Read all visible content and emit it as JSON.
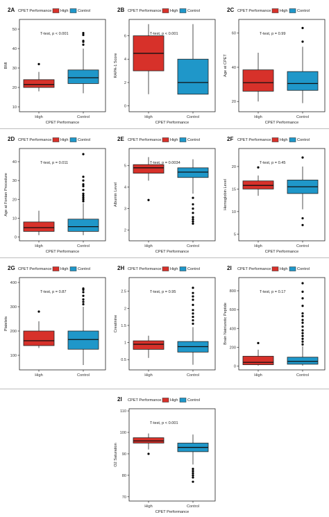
{
  "legend": {
    "title": "CPET Performance",
    "high_label": "High",
    "control_label": "Control",
    "high_color": "#d7312a",
    "control_color": "#1f97c9"
  },
  "groups": [
    "High",
    "Control"
  ],
  "chart_data": [
    {
      "type": "box",
      "panel": "2A",
      "ylabel": "BMI",
      "xlabel": "CPET Performance",
      "annotation": "T-test, p < 0.001",
      "ylim": [
        7.5,
        55
      ],
      "yticks": [
        10,
        20,
        30,
        40,
        50
      ],
      "boxes": [
        {
          "group": "High",
          "whisker_low": 18,
          "q1": 20,
          "median": 21.5,
          "q3": 24,
          "whisker_high": 28,
          "outliers": [
            32
          ]
        },
        {
          "group": "Control",
          "whisker_low": 17,
          "q1": 22,
          "median": 25,
          "q3": 29,
          "whisker_high": 40,
          "outliers": [
            42,
            43.5,
            44,
            47,
            48
          ]
        }
      ]
    },
    {
      "type": "box",
      "panel": "2B",
      "ylabel": "RAPA-1 Score",
      "xlabel": "CPET Performance",
      "annotation": "T-test, p < 0.001",
      "ylim": [
        -0.5,
        7.4
      ],
      "yticks": [
        0,
        2,
        4,
        6
      ],
      "boxes": [
        {
          "group": "High",
          "whisker_low": 1,
          "q1": 3,
          "median": 4.5,
          "q3": 6,
          "whisker_high": 7,
          "outliers": []
        },
        {
          "group": "Control",
          "whisker_low": 1,
          "q1": 1,
          "median": 2,
          "q3": 4,
          "whisker_high": 7,
          "outliers": []
        }
      ]
    },
    {
      "type": "box",
      "panel": "2C",
      "ylabel": "Age at CPET",
      "xlabel": "CPET Performance",
      "annotation": "T-test, p = 0.99",
      "ylim": [
        14,
        68
      ],
      "yticks": [
        20,
        40,
        60
      ],
      "boxes": [
        {
          "group": "High",
          "whisker_low": 20,
          "q1": 26,
          "median": 31,
          "q3": 38.5,
          "whisker_high": 48.5,
          "outliers": []
        },
        {
          "group": "Control",
          "whisker_low": 19,
          "q1": 26.5,
          "median": 30.5,
          "q3": 37.5,
          "whisker_high": 52,
          "outliers": [
            55,
            63
          ]
        }
      ]
    },
    {
      "type": "box",
      "panel": "2D",
      "ylabel": "Age at Fontan Procedure",
      "xlabel": "CPET Performance",
      "annotation": "T-test, p = 0.011",
      "ylim": [
        -2,
        47
      ],
      "yticks": [
        0,
        10,
        20,
        30,
        40
      ],
      "boxes": [
        {
          "group": "High",
          "whisker_low": 1,
          "q1": 3,
          "median": 5,
          "q3": 8,
          "whisker_high": 14,
          "outliers": []
        },
        {
          "group": "Control",
          "whisker_low": 1,
          "q1": 3,
          "median": 5.5,
          "q3": 9.5,
          "whisker_high": 18,
          "outliers": [
            19,
            20,
            21,
            22,
            23,
            25,
            27,
            28,
            30,
            32,
            44
          ]
        }
      ]
    },
    {
      "type": "box",
      "panel": "2E",
      "ylabel": "Albumin Level",
      "xlabel": "CPET Performance",
      "annotation": "T-test, p = 0.0034",
      "ylim": [
        1.5,
        5.8
      ],
      "yticks": [
        2,
        3,
        4,
        5
      ],
      "boxes": [
        {
          "group": "High",
          "whisker_low": 4.3,
          "q1": 4.65,
          "median": 4.9,
          "q3": 5.05,
          "whisker_high": 5.4,
          "outliers": [
            3.4
          ]
        },
        {
          "group": "Control",
          "whisker_low": 3.7,
          "q1": 4.45,
          "median": 4.7,
          "q3": 4.9,
          "whisker_high": 5.3,
          "outliers": [
            2.3,
            2.4,
            2.5,
            2.6,
            2.8,
            3.0,
            3.2,
            3.5
          ]
        }
      ]
    },
    {
      "type": "box",
      "panel": "2F",
      "ylabel": "Hemoglobin Level",
      "xlabel": "CPET Performance",
      "annotation": "T-test, p = 0.45",
      "ylim": [
        3.5,
        24
      ],
      "yticks": [
        5,
        10,
        15,
        20
      ],
      "boxes": [
        {
          "group": "High",
          "whisker_low": 13.5,
          "q1": 15,
          "median": 15.8,
          "q3": 16.8,
          "whisker_high": 18,
          "outliers": [
            19.8
          ]
        },
        {
          "group": "Control",
          "whisker_low": 10.5,
          "q1": 14,
          "median": 15.5,
          "q3": 17,
          "whisker_high": 20,
          "outliers": [
            7,
            8.5,
            22
          ]
        }
      ]
    },
    {
      "type": "box",
      "panel": "2G",
      "ylabel": "Platelets",
      "xlabel": "",
      "annotation": "T-test, p = 0.87",
      "ylim": [
        40,
        420
      ],
      "yticks": [
        100,
        200,
        300,
        400
      ],
      "boxes": [
        {
          "group": "High",
          "whisker_low": 130,
          "q1": 140,
          "median": 160,
          "q3": 200,
          "whisker_high": 240,
          "outliers": [
            280
          ]
        },
        {
          "group": "Control",
          "whisker_low": 60,
          "q1": 125,
          "median": 165,
          "q3": 200,
          "whisker_high": 300,
          "outliers": [
            310,
            320,
            330,
            345,
            360,
            370,
            375
          ]
        }
      ]
    },
    {
      "type": "box",
      "panel": "2H",
      "ylabel": "Creatinine",
      "xlabel": "",
      "annotation": "T-test, p = 0.95",
      "ylim": [
        0.2,
        2.9
      ],
      "yticks": [
        0.5,
        1.0,
        1.5,
        2.0,
        2.5
      ],
      "boxes": [
        {
          "group": "High",
          "whisker_low": 0.55,
          "q1": 0.8,
          "median": 0.95,
          "q3": 1.05,
          "whisker_high": 1.2,
          "outliers": []
        },
        {
          "group": "Control",
          "whisker_low": 0.35,
          "q1": 0.72,
          "median": 0.88,
          "q3": 1.03,
          "whisker_high": 1.45,
          "outliers": [
            1.55,
            1.65,
            1.75,
            1.85,
            1.95,
            2.1,
            2.25,
            2.35,
            2.45,
            2.6
          ]
        }
      ]
    },
    {
      "type": "box",
      "panel": "2I",
      "ylabel": "Brain Natriuretic Peptide",
      "xlabel": "",
      "annotation": "T-test, p = 0.17",
      "ylim": [
        -40,
        940
      ],
      "yticks": [
        0,
        200,
        400,
        600,
        800
      ],
      "boxes": [
        {
          "group": "High",
          "whisker_low": 5,
          "q1": 15,
          "median": 40,
          "q3": 105,
          "whisker_high": 175,
          "outliers": [
            245
          ]
        },
        {
          "group": "Control",
          "whisker_low": 5,
          "q1": 20,
          "median": 50,
          "q3": 95,
          "whisker_high": 210,
          "outliers": [
            230,
            260,
            290,
            320,
            350,
            380,
            420,
            460,
            490,
            530,
            560,
            640,
            720,
            790,
            880
          ]
        }
      ]
    },
    {
      "type": "box",
      "panel": "2I",
      "ylabel": "O2 Saturation",
      "xlabel": "CPET Performance",
      "annotation": "T-test, p < 0.001",
      "ylim": [
        68,
        111
      ],
      "yticks": [
        70,
        80,
        90,
        100,
        110
      ],
      "boxes": [
        {
          "group": "High",
          "whisker_low": 92,
          "q1": 95,
          "median": 96,
          "q3": 97.5,
          "whisker_high": 99.5,
          "outliers": [
            90
          ]
        },
        {
          "group": "Control",
          "whisker_low": 85,
          "q1": 91,
          "median": 93,
          "q3": 95,
          "whisker_high": 99,
          "outliers": [
            77,
            79,
            80,
            81,
            82,
            83
          ]
        }
      ]
    }
  ]
}
